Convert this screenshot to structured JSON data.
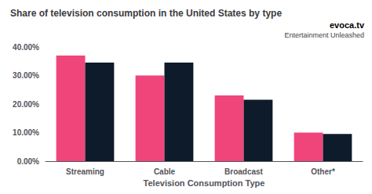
{
  "chart_data": {
    "type": "bar",
    "title": "Share of television consumption in the United States by type",
    "xlabel": "Television Consumption Type",
    "categories": [
      "Streaming",
      "Cable",
      "Broadcast",
      "Other*"
    ],
    "series": [
      {
        "color": "#F0457A",
        "values": [
          0.37,
          0.3,
          0.23,
          0.1
        ]
      },
      {
        "color": "#0D1B2A",
        "values": [
          0.345,
          0.345,
          0.215,
          0.095
        ]
      }
    ],
    "ylim": [
      0,
      0.4
    ],
    "yticks": [
      {
        "value": 0.0,
        "label": "0.00%"
      },
      {
        "value": 0.1,
        "label": "10.00%"
      },
      {
        "value": 0.2,
        "label": "20.00%"
      },
      {
        "value": 0.3,
        "label": "30.00%"
      },
      {
        "value": 0.4,
        "label": "40.00%"
      }
    ],
    "annotations": [
      "evoca.tv",
      "Entertainment Unleashed"
    ],
    "grid": false
  }
}
